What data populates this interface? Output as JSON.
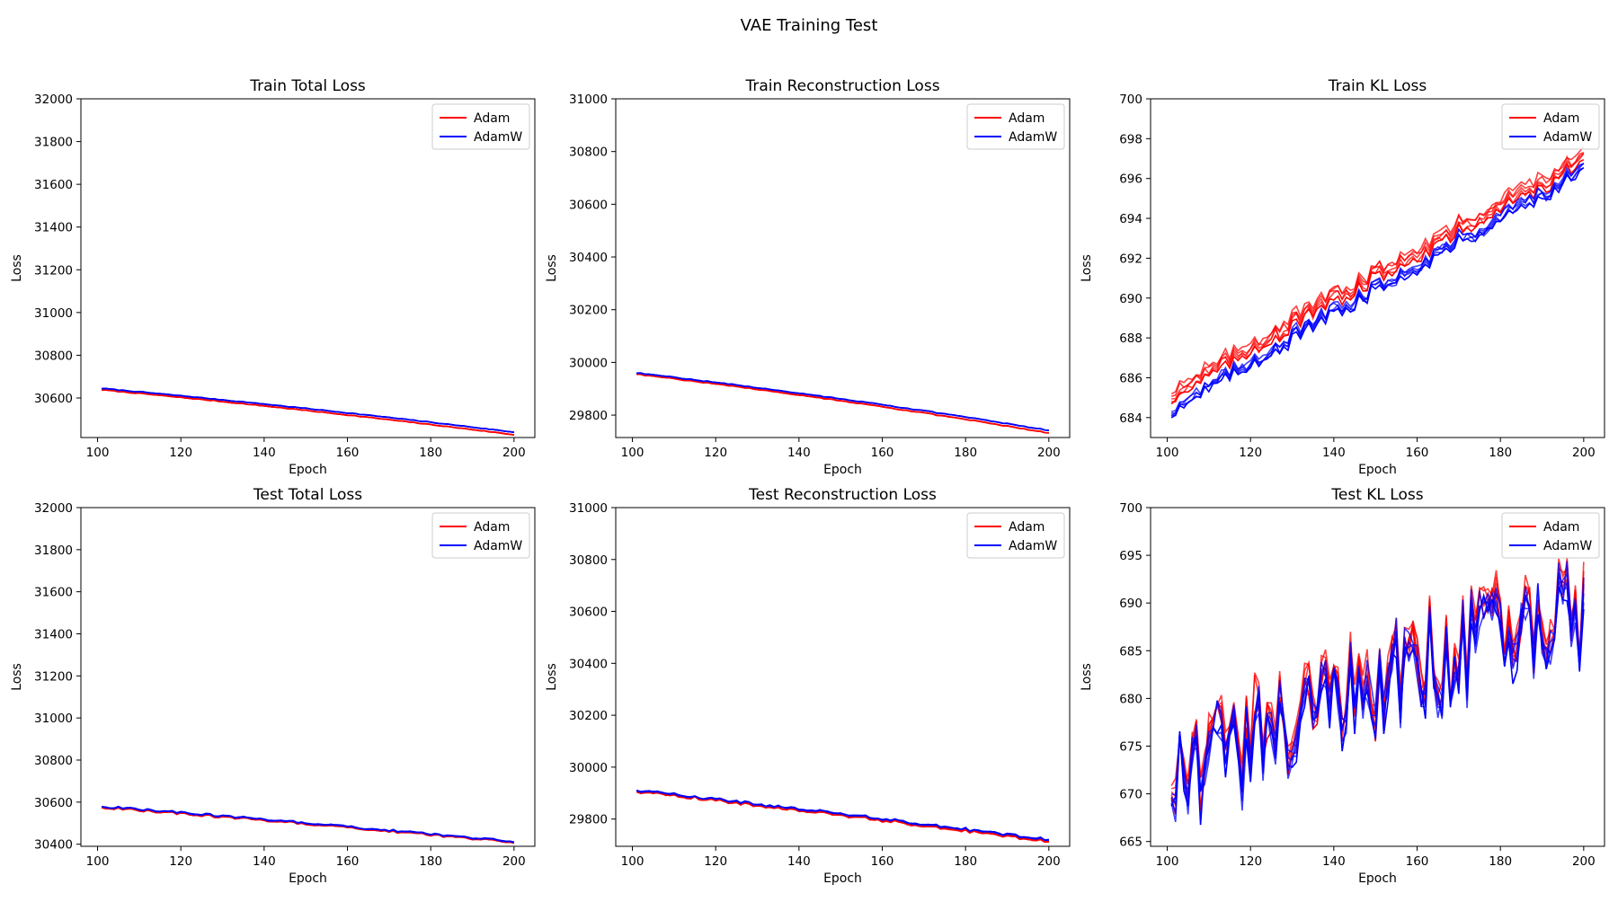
{
  "figure": {
    "title": "VAE Training Test"
  },
  "colors": {
    "Adam": "#ff0000",
    "AdamW": "#0000ff",
    "axis": "#000000",
    "legend_border": "#cccccc"
  },
  "legend": {
    "placement": "upper right",
    "entries": [
      "Adam",
      "AdamW"
    ]
  },
  "chart_data": [
    {
      "type": "line",
      "title": "Train Total Loss",
      "xlabel": "Epoch",
      "ylabel": "Loss",
      "xlim": [
        96,
        205
      ],
      "ylim": [
        30415,
        32000
      ],
      "xticks": [
        100,
        120,
        140,
        160,
        180,
        200
      ],
      "yticks": [
        30600,
        30800,
        31000,
        31200,
        31400,
        31600,
        31800,
        32000
      ],
      "grid": false,
      "legend": "upper right",
      "x_range": [
        101,
        200
      ],
      "series": [
        {
          "name": "Adam",
          "start": 30638,
          "end": 30428,
          "curve": 0.15,
          "noise": 2,
          "copies": 5
        },
        {
          "name": "AdamW",
          "start": 30645,
          "end": 30440,
          "curve": 0.15,
          "noise": 2,
          "copies": 5
        }
      ]
    },
    {
      "type": "line",
      "title": "Train Reconstruction Loss",
      "xlabel": "Epoch",
      "ylabel": "Loss",
      "xlim": [
        96,
        205
      ],
      "ylim": [
        29715,
        31000
      ],
      "xticks": [
        100,
        120,
        140,
        160,
        180,
        200
      ],
      "yticks": [
        29800,
        30000,
        30200,
        30400,
        30600,
        30800,
        31000
      ],
      "grid": false,
      "legend": "upper right",
      "x_range": [
        101,
        200
      ],
      "series": [
        {
          "name": "Adam",
          "start": 29955,
          "end": 29732,
          "curve": 0.18,
          "noise": 2,
          "copies": 5
        },
        {
          "name": "AdamW",
          "start": 29960,
          "end": 29742,
          "curve": 0.18,
          "noise": 2,
          "copies": 5
        }
      ]
    },
    {
      "type": "line",
      "title": "Train KL Loss",
      "xlabel": "Epoch",
      "ylabel": "Loss",
      "xlim": [
        96,
        205
      ],
      "ylim": [
        683,
        700
      ],
      "xticks": [
        100,
        120,
        140,
        160,
        180,
        200
      ],
      "yticks": [
        684,
        686,
        688,
        690,
        692,
        694,
        696,
        698,
        700
      ],
      "grid": false,
      "legend": "upper right",
      "x_range": [
        101,
        200
      ],
      "series": [
        {
          "name": "Adam",
          "start": 685.2,
          "end": 697.0,
          "curve": -0.05,
          "noise": 0.45,
          "copies": 5,
          "spread": 0.5
        },
        {
          "name": "AdamW",
          "start": 684.4,
          "end": 696.4,
          "curve": -0.05,
          "noise": 0.45,
          "copies": 5,
          "spread": 0.3
        }
      ]
    },
    {
      "type": "line",
      "title": "Test Total Loss",
      "xlabel": "Epoch",
      "ylabel": "Loss",
      "xlim": [
        96,
        205
      ],
      "ylim": [
        30390,
        32000
      ],
      "xticks": [
        100,
        120,
        140,
        160,
        180,
        200
      ],
      "yticks": [
        30400,
        30600,
        30800,
        31000,
        31200,
        31400,
        31600,
        31800,
        32000
      ],
      "grid": false,
      "legend": "upper right",
      "x_range": [
        101,
        200
      ],
      "series": [
        {
          "name": "Adam",
          "start": 30575,
          "end": 30408,
          "curve": 0.1,
          "noise": 6,
          "copies": 5
        },
        {
          "name": "AdamW",
          "start": 30580,
          "end": 30412,
          "curve": 0.1,
          "noise": 6,
          "copies": 5
        }
      ]
    },
    {
      "type": "line",
      "title": "Test Reconstruction Loss",
      "xlabel": "Epoch",
      "ylabel": "Loss",
      "xlim": [
        96,
        205
      ],
      "ylim": [
        29695,
        31000
      ],
      "xticks": [
        100,
        120,
        140,
        160,
        180,
        200
      ],
      "yticks": [
        29800,
        30000,
        30200,
        30400,
        30600,
        30800,
        31000
      ],
      "grid": false,
      "legend": "upper right",
      "x_range": [
        101,
        200
      ],
      "series": [
        {
          "name": "Adam",
          "start": 29905,
          "end": 29713,
          "curve": 0.1,
          "noise": 7,
          "copies": 5
        },
        {
          "name": "AdamW",
          "start": 29910,
          "end": 29720,
          "curve": 0.1,
          "noise": 7,
          "copies": 5
        }
      ]
    },
    {
      "type": "line",
      "title": "Test KL Loss",
      "xlabel": "Epoch",
      "ylabel": "Loss",
      "xlim": [
        96,
        205
      ],
      "ylim": [
        664.5,
        700
      ],
      "xticks": [
        100,
        120,
        140,
        160,
        180,
        200
      ],
      "yticks": [
        665,
        670,
        675,
        680,
        685,
        690,
        695,
        700
      ],
      "grid": false,
      "legend": "upper right",
      "x_range": [
        101,
        200
      ],
      "series": [
        {
          "name": "Adam",
          "start": 672,
          "end": 690,
          "curve": -0.3,
          "noise": 6,
          "copies": 5,
          "spread": 1.2
        },
        {
          "name": "AdamW",
          "start": 671,
          "end": 689,
          "curve": -0.3,
          "noise": 6,
          "copies": 5,
          "spread": 1.2
        }
      ]
    }
  ]
}
